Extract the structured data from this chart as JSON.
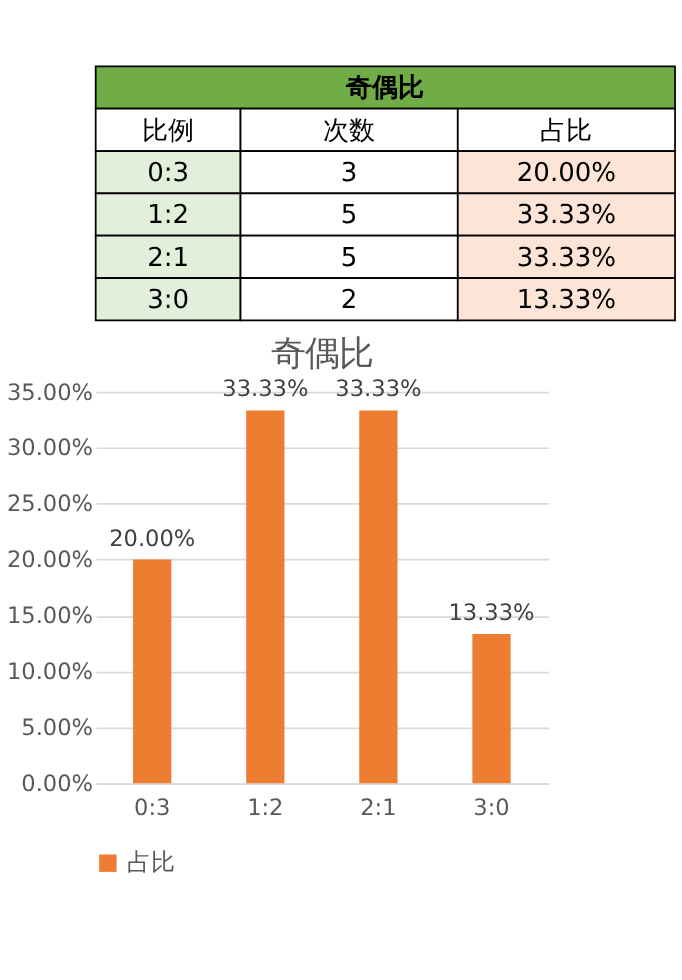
{
  "chart_data": [
    {
      "type": "other",
      "title": "奇偶比",
      "ylabel": "比例",
      "categories": [
        "次数",
        "占比"
      ],
      "y_categories": [
        "0:3",
        "1:2",
        "2:1",
        "3:0"
      ],
      "cell_labels": [
        [
          "3",
          "20.00%"
        ],
        [
          "5",
          "33.33%"
        ],
        [
          "5",
          "33.33%"
        ],
        [
          "2",
          "13.33%"
        ]
      ]
    },
    {
      "type": "bar",
      "title": "奇偶比",
      "categories": [
        "0:3",
        "1:2",
        "2:1",
        "3:0"
      ],
      "series": [
        {
          "name": "占比",
          "color": "#ed7d31",
          "values": [
            20.0,
            33.33,
            33.33,
            13.33
          ],
          "value_labels": [
            "20.00%",
            "33.33%",
            "33.33%",
            "13.33%"
          ]
        }
      ],
      "ylim": [
        0,
        35
      ],
      "yticks": [
        {
          "value": 0,
          "label": "0.00%"
        },
        {
          "value": 5,
          "label": "5.00%"
        },
        {
          "value": 10,
          "label": "10.00%"
        },
        {
          "value": 15,
          "label": "15.00%"
        },
        {
          "value": 20,
          "label": "20.00%"
        },
        {
          "value": 25,
          "label": "25.00%"
        },
        {
          "value": 30,
          "label": "30.00%"
        },
        {
          "value": 35,
          "label": "35.00%"
        }
      ],
      "grid": "y",
      "legend": "bottom"
    }
  ]
}
